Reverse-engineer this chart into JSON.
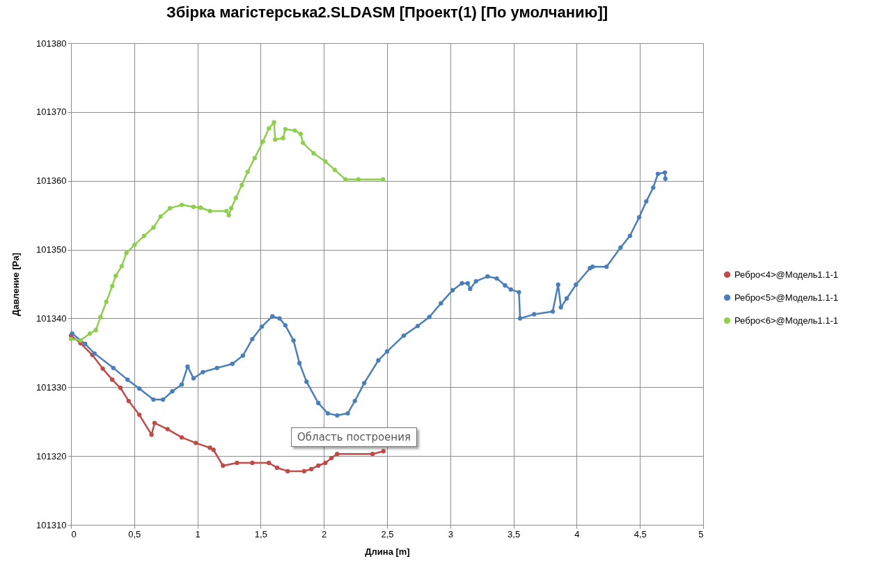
{
  "chart_data": {
    "type": "line",
    "title": "Збірка магістерська2.SLDASM  [Проект(1) [По умолчанию]]",
    "xlabel": "Длина [m]",
    "ylabel": "Давление [Pa]",
    "xlim": [
      0,
      5
    ],
    "ylim": [
      101310,
      101380
    ],
    "xticks": [
      0,
      {
        "value": 0.5,
        "label": "0,5"
      },
      1,
      {
        "value": 1.5,
        "label": "1,5"
      },
      2,
      {
        "value": 2.5,
        "label": "2,5"
      },
      3,
      {
        "value": 3.5,
        "label": "3,5"
      },
      4,
      {
        "value": 4.5,
        "label": "4,5"
      },
      5
    ],
    "yticks": [
      101310,
      101320,
      101330,
      101340,
      101350,
      101360,
      101370,
      101380
    ],
    "grid": true,
    "legend": "right",
    "marker": "circle",
    "annotations": [
      "Область построения"
    ],
    "series": [
      {
        "name": "Ребро<4>@Модель1.1-1",
        "color": "#be4b48",
        "x": [
          0,
          0.075,
          0.168,
          0.251,
          0.326,
          0.391,
          0.456,
          0.54,
          0.637,
          0.661,
          0.764,
          0.876,
          0.987,
          1.099,
          1.127,
          1.202,
          1.313,
          1.434,
          1.565,
          1.63,
          1.714,
          1.844,
          1.9,
          1.956,
          2.012,
          2.059,
          2.105,
          2.385,
          2.471
        ],
        "values": [
          101337.5,
          101336.4,
          101334.7,
          101332.7,
          101331.1,
          101329.9,
          101328.0,
          101326.0,
          101323.1,
          101324.8,
          101323.9,
          101322.7,
          101321.9,
          101321.2,
          101320.9,
          101318.6,
          101319.0,
          101319.0,
          101319.0,
          101318.3,
          101317.8,
          101317.8,
          101318.1,
          101318.6,
          101319.0,
          101319.7,
          101320.3,
          101320.3,
          101320.7
        ]
      },
      {
        "name": "Ребро<5>@Модель1.1-1",
        "color": "#4a7ebb",
        "x": [
          0.009,
          0.112,
          0.186,
          0.335,
          0.447,
          0.54,
          0.652,
          0.727,
          0.801,
          0.876,
          0.922,
          0.969,
          1.043,
          1.155,
          1.276,
          1.36,
          1.434,
          1.509,
          1.593,
          1.649,
          1.695,
          1.76,
          1.807,
          1.863,
          1.956,
          2.031,
          2.105,
          2.189,
          2.245,
          2.319,
          2.431,
          2.5,
          2.632,
          2.742,
          2.834,
          2.926,
          3.018,
          3.092,
          3.138,
          3.157,
          3.203,
          3.295,
          3.368,
          3.433,
          3.479,
          3.543,
          3.552,
          3.663,
          3.81,
          3.853,
          3.875,
          3.921,
          3.994,
          4.105,
          4.125,
          4.236,
          4.347,
          4.421,
          4.494,
          4.55,
          4.605,
          4.642,
          4.698,
          4.701
        ],
        "values": [
          101337.8,
          101336.3,
          101334.9,
          101332.8,
          101331.1,
          101329.8,
          101328.2,
          101328.2,
          101329.4,
          101330.4,
          101333.0,
          101331.3,
          101332.2,
          101332.8,
          101333.4,
          101334.6,
          101337.0,
          101338.8,
          101340.3,
          101340.0,
          101339.0,
          101336.8,
          101333.5,
          101330.8,
          101327.7,
          101326.2,
          101325.9,
          101326.2,
          101328.0,
          101330.6,
          101333.9,
          101335.2,
          101337.5,
          101338.9,
          101340.2,
          101342.2,
          101344.1,
          101345.1,
          101345.1,
          101344.3,
          101345.4,
          101346.1,
          101345.8,
          101344.8,
          101344.2,
          101343.8,
          101340.0,
          101340.6,
          101341.0,
          101344.9,
          101341.6,
          101342.9,
          101344.9,
          101347.3,
          101347.5,
          101347.5,
          101350.3,
          101352.0,
          101354.7,
          101357.0,
          101359.0,
          101361.0,
          101361.2,
          101360.3
        ]
      },
      {
        "name": "Ребро<6>@Модель1.1-1",
        "color": "#8fcf4f",
        "x": [
          0,
          0.075,
          0.149,
          0.196,
          0.233,
          0.279,
          0.326,
          0.354,
          0.401,
          0.438,
          0.503,
          0.578,
          0.652,
          0.708,
          0.782,
          0.876,
          0.969,
          1.025,
          1.099,
          1.23,
          1.248,
          1.267,
          1.304,
          1.351,
          1.397,
          1.453,
          1.518,
          1.565,
          1.606,
          1.615,
          1.677,
          1.695,
          1.77,
          1.816,
          1.835,
          1.919,
          2.012,
          2.086,
          2.17,
          2.273,
          2.468
        ],
        "values": [
          101337.0,
          101336.8,
          101337.8,
          101338.3,
          101340.2,
          101342.4,
          101344.7,
          101346.2,
          101347.6,
          101349.5,
          101350.7,
          101352.0,
          101353.2,
          101354.8,
          101356.0,
          101356.5,
          101356.2,
          101356.1,
          101355.6,
          101355.6,
          101355.0,
          101356.0,
          101357.5,
          101359.4,
          101361.3,
          101363.3,
          101365.7,
          101367.6,
          101368.5,
          101366.0,
          101366.2,
          101367.5,
          101367.3,
          101366.8,
          101365.5,
          101364.0,
          101362.8,
          101361.6,
          101360.2,
          101360.2,
          101360.2
        ]
      }
    ]
  }
}
